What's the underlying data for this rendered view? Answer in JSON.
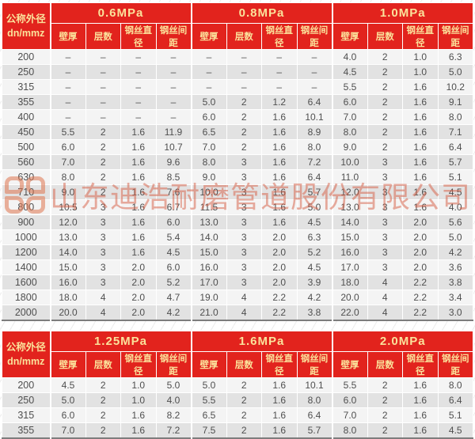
{
  "colors": {
    "header_bg": "#e2231d",
    "header_text": "#fbe29b",
    "row_light": "#f4f4f4",
    "row_dark": "#e2e2e2",
    "body_text": "#4f4f4f",
    "watermark": "#d65c42"
  },
  "watermark": {
    "company": "山东迪浩耐磨管道股份有限公司",
    "logo": "dihao-logo"
  },
  "columns": {
    "dn_label_line1": "公称外径",
    "dn_label_line2": "dn/mmz",
    "sub_headers": [
      "壁厚",
      "层数",
      "钢丝直径",
      "钢丝间距"
    ]
  },
  "table1": {
    "pressures": [
      "0.6MPa",
      "0.8MPa",
      "1.0MPa"
    ],
    "rows": [
      {
        "dn": "200",
        "cells": [
          "–",
          "–",
          "–",
          "–",
          "–",
          "–",
          "–",
          "–",
          "4.0",
          "2",
          "1.0",
          "6.3"
        ]
      },
      {
        "dn": "250",
        "cells": [
          "–",
          "–",
          "–",
          "–",
          "–",
          "–",
          "–",
          "–",
          "4.5",
          "2",
          "1.0",
          "5.0"
        ]
      },
      {
        "dn": "315",
        "cells": [
          "–",
          "–",
          "–",
          "–",
          "–",
          "–",
          "–",
          "–",
          "5.5",
          "2",
          "1.6",
          "10.2"
        ]
      },
      {
        "dn": "355",
        "cells": [
          "–",
          "–",
          "–",
          "–",
          "5.0",
          "2",
          "1.2",
          "6.4",
          "6.0",
          "2",
          "1.6",
          "9.1"
        ]
      },
      {
        "dn": "400",
        "cells": [
          "–",
          "–",
          "–",
          "–",
          "6.0",
          "2",
          "1.6",
          "10.1",
          "7.0",
          "2",
          "1.6",
          "8.0"
        ]
      },
      {
        "dn": "450",
        "cells": [
          "5.5",
          "2",
          "1.6",
          "11.9",
          "6.5",
          "2",
          "1.6",
          "8.9",
          "8.0",
          "2",
          "1.6",
          "7.1"
        ]
      },
      {
        "dn": "500",
        "cells": [
          "6.0",
          "2",
          "1.6",
          "10.7",
          "7.0",
          "2",
          "1.6",
          "8.0",
          "9.0",
          "2",
          "1.6",
          "6.4"
        ]
      },
      {
        "dn": "560",
        "cells": [
          "7.0",
          "2",
          "1.6",
          "9.6",
          "8.0",
          "3",
          "1.6",
          "7.2",
          "10.0",
          "3",
          "1.6",
          "5.7"
        ]
      },
      {
        "dn": "630",
        "cells": [
          "8.0",
          "2",
          "1.6",
          "8.5",
          "9.0",
          "3",
          "1.6",
          "6.4",
          "11.0",
          "3",
          "1.6",
          "5.1"
        ]
      },
      {
        "dn": "710",
        "cells": [
          "9.0",
          "2",
          "1.6",
          "7.6",
          "10.0",
          "3",
          "1.6",
          "5.7",
          "12.0",
          "3",
          "1.6",
          "4.5"
        ]
      },
      {
        "dn": "800",
        "cells": [
          "10.5",
          "3",
          "1.6",
          "6.7",
          "11.5",
          "3",
          "1.6",
          "5.0",
          "13.0",
          "3",
          "1.6",
          "4.0"
        ]
      },
      {
        "dn": "900",
        "cells": [
          "12.0",
          "3",
          "1.6",
          "6.0",
          "13.0",
          "3",
          "1.6",
          "4.5",
          "14.0",
          "3",
          "2.0",
          "5.6"
        ]
      },
      {
        "dn": "1000",
        "cells": [
          "13.0",
          "3",
          "1.6",
          "5.4",
          "14.0",
          "3",
          "2.0",
          "6.3",
          "15.0",
          "3",
          "2.0",
          "5.0"
        ]
      },
      {
        "dn": "1200",
        "cells": [
          "14.0",
          "3",
          "1.6",
          "4.5",
          "15.0",
          "3",
          "2.0",
          "5.2",
          "16.0",
          "3",
          "2.0",
          "4.2"
        ]
      },
      {
        "dn": "1400",
        "cells": [
          "15.0",
          "3",
          "2.0",
          "6.0",
          "16.0",
          "3",
          "2.0",
          "4.5",
          "17.0",
          "3",
          "2.0",
          "3.6"
        ]
      },
      {
        "dn": "1600",
        "cells": [
          "16.0",
          "3",
          "2.0",
          "5.2",
          "17.0",
          "3",
          "2.0",
          "3.9",
          "18.0",
          "4",
          "2.2",
          "3.8"
        ]
      },
      {
        "dn": "1800",
        "cells": [
          "18.0",
          "4",
          "2.0",
          "4.7",
          "19.0",
          "4",
          "2.2",
          "4.2",
          "20.0",
          "4",
          "2.2",
          "3.4"
        ]
      },
      {
        "dn": "2000",
        "cells": [
          "20.0",
          "4",
          "2.0",
          "4.2",
          "21.0",
          "4",
          "2.2",
          "3.8",
          "22.0",
          "4",
          "2.2",
          "3.0"
        ]
      }
    ]
  },
  "table2": {
    "pressures": [
      "1.25MPa",
      "1.6MPa",
      "2.0MPa"
    ],
    "rows": [
      {
        "dn": "200",
        "cells": [
          "4.5",
          "2",
          "1.0",
          "5.0",
          "5.0",
          "2",
          "1.6",
          "10.1",
          "5.5",
          "2",
          "1.6",
          "8.0"
        ]
      },
      {
        "dn": "250",
        "cells": [
          "5.0",
          "2",
          "1.0",
          "4.0",
          "5.5",
          "2",
          "1.6",
          "8.0",
          "6.0",
          "2",
          "1.6",
          "6.4"
        ]
      },
      {
        "dn": "315",
        "cells": [
          "6.0",
          "2",
          "1.6",
          "8.2",
          "6.5",
          "2",
          "1.6",
          "6.4",
          "7.0",
          "2",
          "1.6",
          "5.1"
        ]
      },
      {
        "dn": "355",
        "cells": [
          "7.0",
          "2",
          "1.6",
          "7.2",
          "7.5",
          "2",
          "1.6",
          "5.7",
          "8.0",
          "2",
          "1.6",
          "4.5"
        ]
      }
    ]
  }
}
